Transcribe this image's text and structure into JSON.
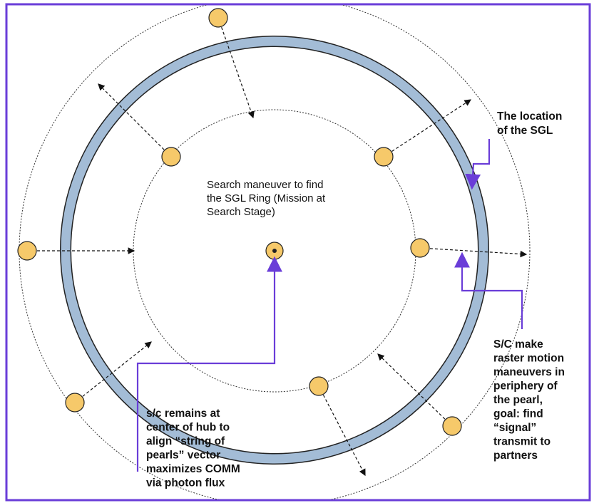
{
  "annotations": [
    {
      "name": "sgl-location",
      "lines": [
        "The location",
        "of the SGL"
      ]
    },
    {
      "name": "search-maneuver",
      "lines": [
        "Search maneuver to find",
        "the SGL Ring (Mission at",
        "Search Stage)"
      ]
    },
    {
      "name": "raster-motion",
      "lines": [
        "S/C make",
        "raster motion",
        "maneuvers in",
        "periphery of",
        "the pearl,",
        "goal: find",
        "“signal”",
        "transmit to",
        "partners"
      ]
    },
    {
      "name": "hub",
      "lines": [
        "s/c remains at",
        "center of hub to",
        "align “string of",
        "pearls” vector",
        "maximizes COMM",
        "via  photon flux"
      ]
    }
  ]
}
